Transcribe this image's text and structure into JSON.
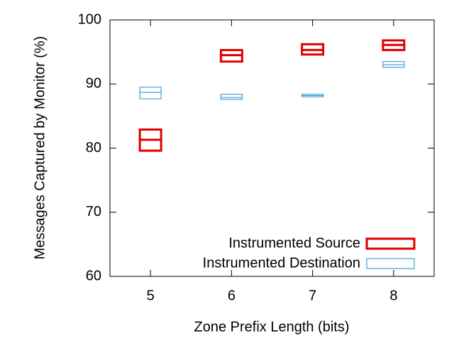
{
  "chart_data": {
    "type": "box",
    "x_label": "Zone Prefix Length (bits)",
    "y_label": "Messages Captured by Monitor (%)",
    "x": [
      5,
      6,
      7,
      8
    ],
    "xlim": [
      4.5,
      8.5
    ],
    "xticks": [
      5,
      6,
      7,
      8
    ],
    "ylim": [
      60,
      100
    ],
    "yticks": [
      60,
      70,
      80,
      90,
      100
    ],
    "legend": "bottom-right",
    "series": [
      {
        "name": "Instrumented Source",
        "color": "#e00000",
        "low": [
          79.6,
          93.5,
          94.6,
          95.3
        ],
        "median": [
          81.3,
          94.5,
          95.3,
          96.1
        ],
        "high": [
          82.9,
          95.3,
          96.2,
          96.8
        ]
      },
      {
        "name": "Instrumented Destination",
        "color": "#1a8fd0",
        "low": [
          87.7,
          87.6,
          88.0,
          92.6
        ],
        "median": [
          88.7,
          87.9,
          88.2,
          93.0
        ],
        "high": [
          89.5,
          88.4,
          88.4,
          93.5
        ]
      }
    ]
  }
}
